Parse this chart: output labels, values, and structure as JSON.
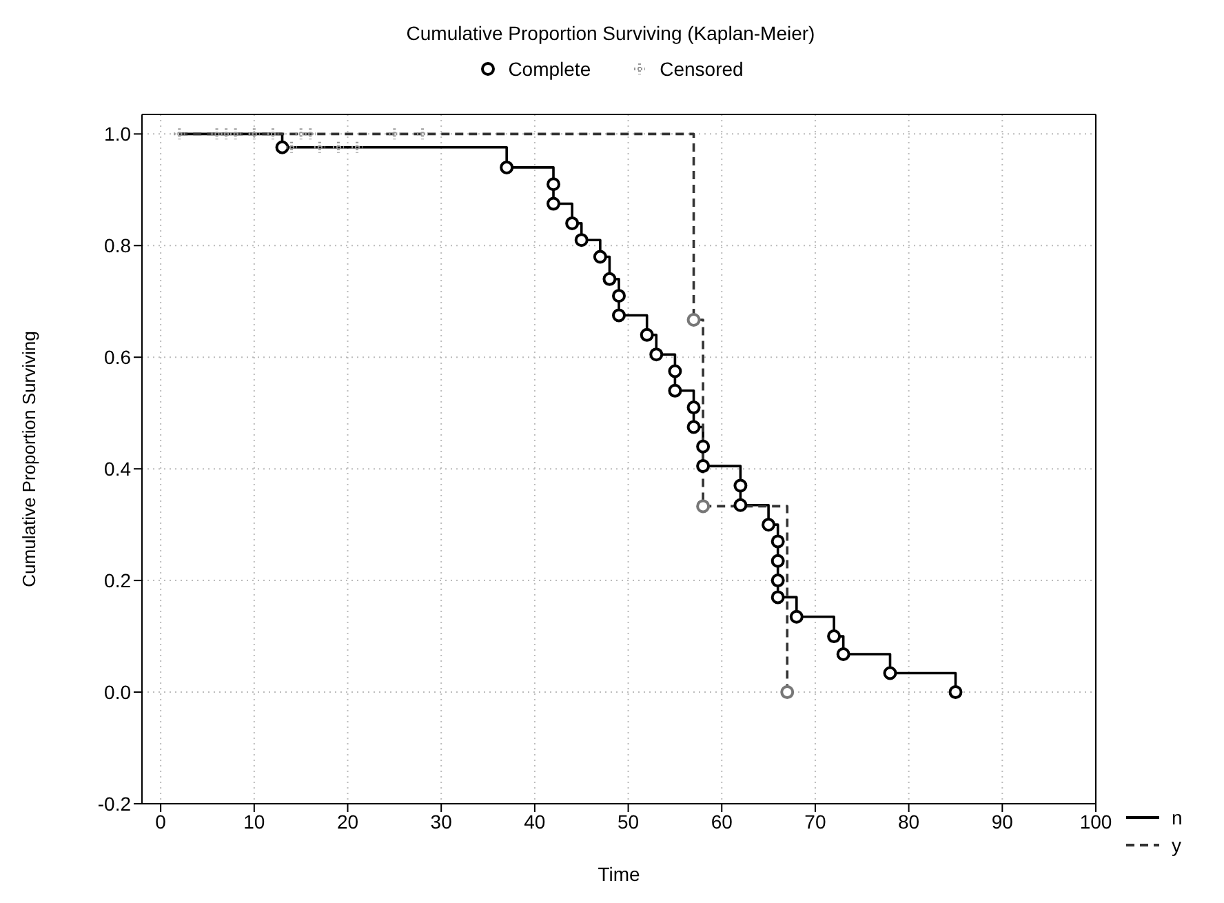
{
  "chart_data": {
    "type": "step",
    "title": "Cumulative Proportion Surviving (Kaplan-Meier)",
    "xlabel": "Time",
    "ylabel": "Cumulative Proportion Surviving",
    "xlim": [
      -2,
      100
    ],
    "xticks": [
      0,
      10,
      20,
      30,
      40,
      50,
      60,
      70,
      80,
      90,
      100
    ],
    "ylim": [
      -0.2,
      1.035
    ],
    "yticks": [
      -0.2,
      {
        "value": 0,
        "label": "0.0"
      },
      0.2,
      0.4,
      0.6,
      0.8,
      {
        "value": 1,
        "label": "1.0"
      }
    ],
    "grid": true,
    "legend": "top",
    "series": [
      {
        "name": "n",
        "color": "#000000",
        "line_style": "solid",
        "x": [
          2,
          13,
          37,
          42,
          42,
          44,
          45,
          47,
          48,
          49,
          49,
          52,
          53,
          55,
          55,
          57,
          57,
          58,
          58,
          62,
          62,
          65,
          66,
          66,
          66,
          66,
          68,
          72,
          73,
          78,
          85
        ],
        "values": [
          1,
          0.976,
          0.94,
          0.91,
          0.875,
          0.84,
          0.81,
          0.78,
          0.74,
          0.71,
          0.675,
          0.64,
          0.605,
          0.575,
          0.54,
          0.51,
          0.475,
          0.44,
          0.405,
          0.37,
          0.335,
          0.3,
          0.27,
          0.235,
          0.2,
          0.17,
          0.135,
          0.1,
          0.068,
          0.034,
          0
        ]
      },
      {
        "name": "y",
        "color": "#333333",
        "line_style": "dashed",
        "x": [
          2,
          57,
          58,
          67
        ],
        "values": [
          1,
          0.667,
          0.333,
          0
        ]
      },
      {
        "name": "Complete",
        "type": "scatter",
        "marker": "circle",
        "color": "#000000",
        "x": [
          13,
          37,
          42,
          42,
          44,
          45,
          47,
          48,
          49,
          49,
          52,
          53,
          55,
          55,
          57,
          57,
          58,
          58,
          62,
          62,
          65,
          66,
          66,
          66,
          66,
          68,
          72,
          73,
          78,
          85,
          57,
          58,
          67
        ],
        "values": [
          0.976,
          0.94,
          0.91,
          0.875,
          0.84,
          0.81,
          0.78,
          0.74,
          0.71,
          0.675,
          0.64,
          0.605,
          0.575,
          0.54,
          0.51,
          0.475,
          0.44,
          0.405,
          0.37,
          0.335,
          0.3,
          0.27,
          0.235,
          0.2,
          0.17,
          0.135,
          0.1,
          0.068,
          0.034,
          0,
          0.667,
          0.333,
          0
        ],
        "colors": [
          "#000000",
          "#000000",
          "#000000",
          "#000000",
          "#000000",
          "#000000",
          "#000000",
          "#000000",
          "#000000",
          "#000000",
          "#000000",
          "#000000",
          "#000000",
          "#000000",
          "#000000",
          "#000000",
          "#000000",
          "#000000",
          "#000000",
          "#000000",
          "#000000",
          "#000000",
          "#000000",
          "#000000",
          "#000000",
          "#000000",
          "#000000",
          "#000000",
          "#000000",
          "#000000",
          "#777777",
          "#777777",
          "#777777"
        ]
      },
      {
        "name": "Censored",
        "type": "scatter",
        "marker": "cross",
        "color": "#999999",
        "x": [
          2,
          6,
          7,
          8,
          10,
          12,
          15,
          16,
          25,
          28,
          14,
          17,
          19,
          21
        ],
        "values": [
          1,
          1,
          1,
          1,
          1,
          1,
          1,
          1,
          1,
          1,
          0.976,
          0.976,
          0.976,
          0.976
        ]
      }
    ]
  }
}
